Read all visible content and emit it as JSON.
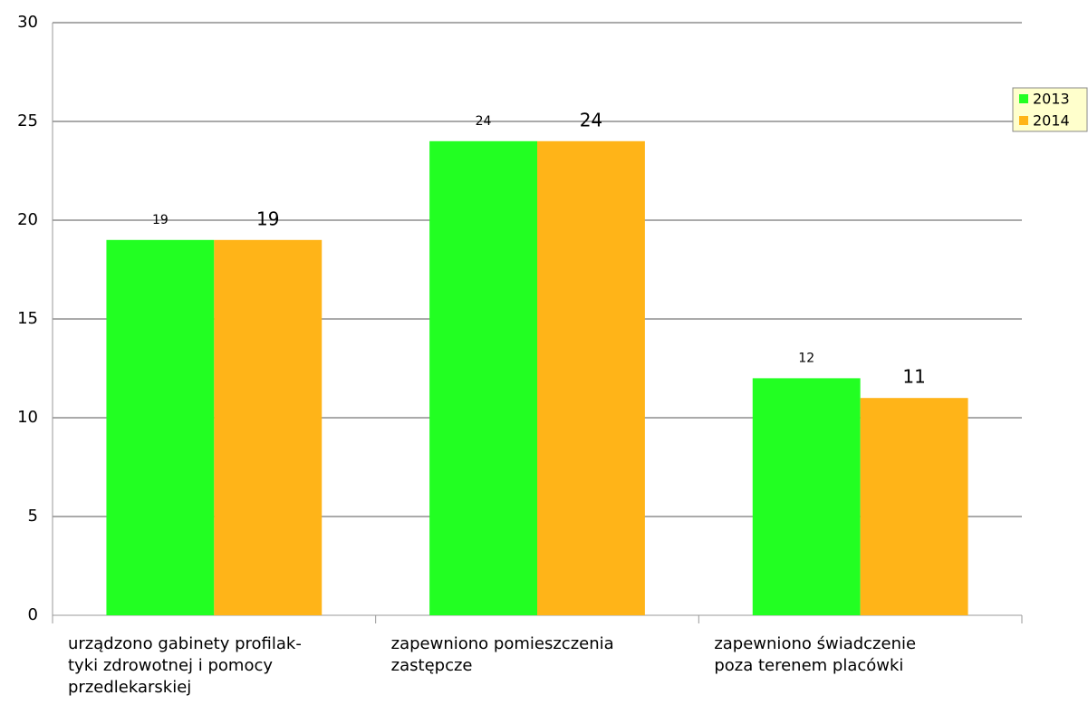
{
  "chart_data": {
    "type": "bar",
    "categories": [
      "urządzono gabinety profilak-\ntyki zdrowotnej i pomocy\nprzedlekarskiej",
      "zapewniono pomieszczenia\nzastępcze",
      "zapewniono świadczenie\npoza terenem placówki"
    ],
    "series": [
      {
        "name": "2013",
        "color": "#22ff22",
        "values": [
          19,
          24,
          12
        ]
      },
      {
        "name": "2014",
        "color": "#ffb418",
        "values": [
          19,
          24,
          11
        ]
      }
    ],
    "ylim": [
      0,
      30
    ],
    "yticks": [
      0,
      5,
      10,
      15,
      20,
      25,
      30
    ],
    "grid": true,
    "legend": "right"
  }
}
